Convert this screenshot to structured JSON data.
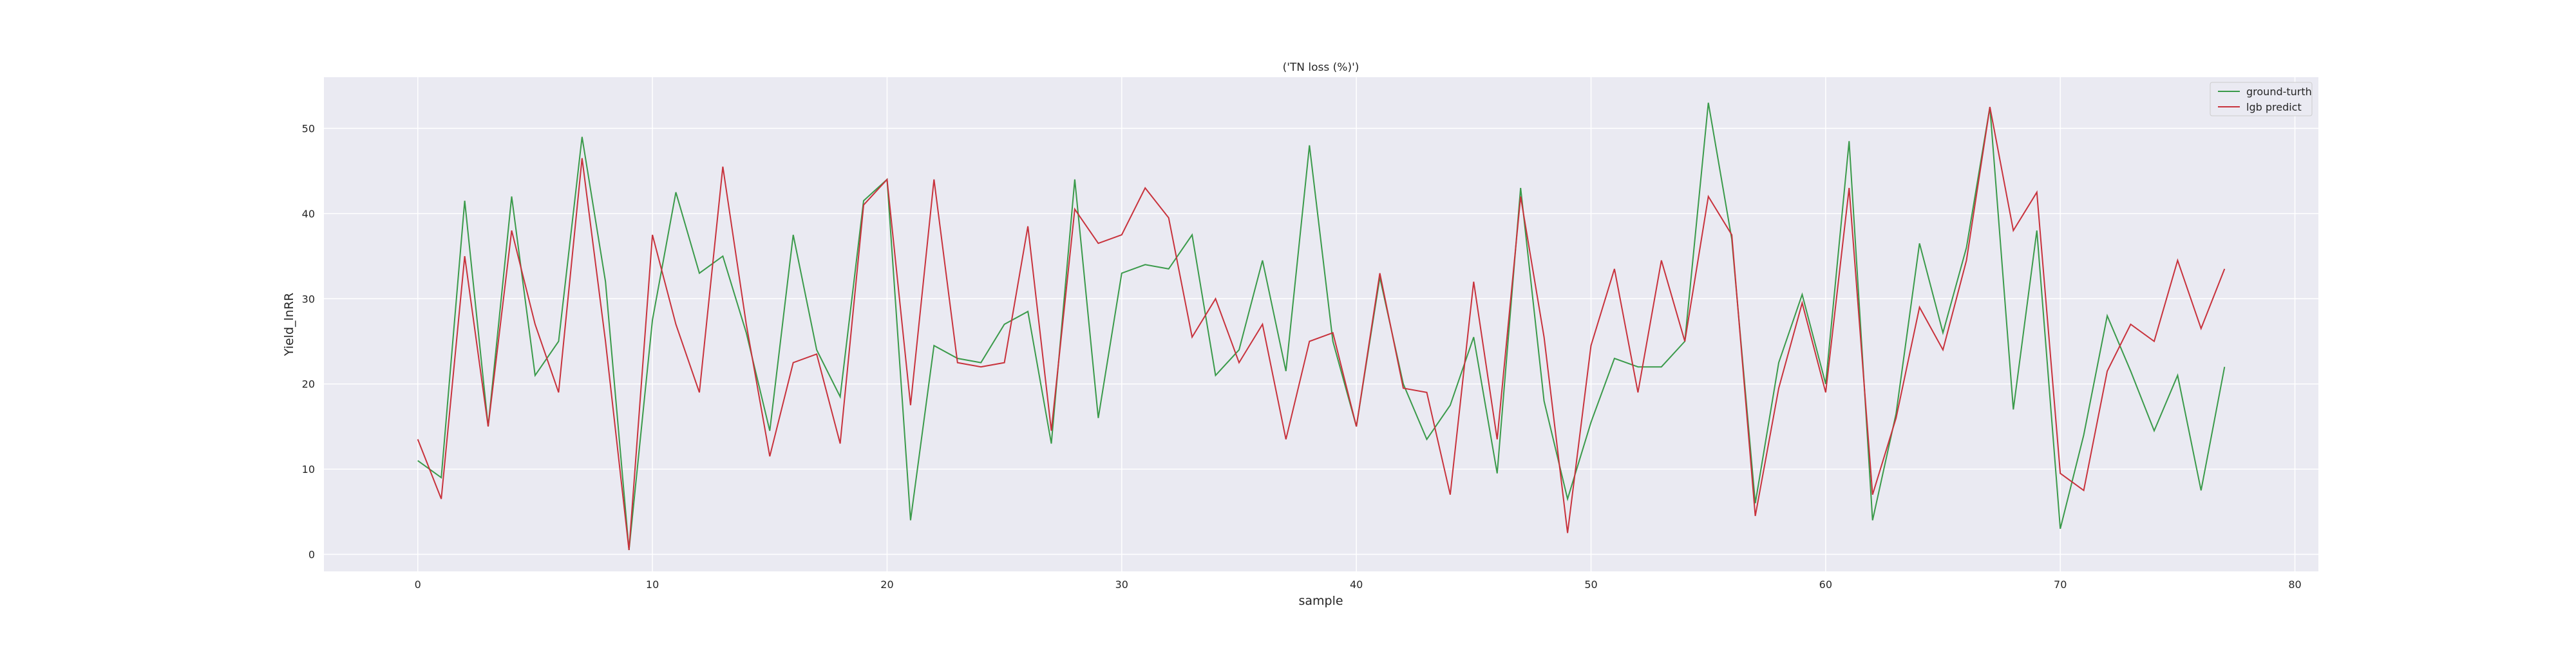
{
  "chart_data": {
    "type": "line",
    "title": "('TN loss (%)')",
    "xlabel": "sample",
    "ylabel": "Yield_lnRR",
    "xlim": [
      -4,
      81
    ],
    "ylim": [
      -2,
      56
    ],
    "xticks": [
      0,
      10,
      20,
      30,
      40,
      50,
      60,
      70,
      80
    ],
    "yticks": [
      0,
      10,
      20,
      30,
      40,
      50
    ],
    "grid": true,
    "legend_position": "top-right",
    "x": [
      0,
      1,
      2,
      3,
      4,
      5,
      6,
      7,
      8,
      9,
      10,
      11,
      12,
      13,
      14,
      15,
      16,
      17,
      18,
      19,
      20,
      21,
      22,
      23,
      24,
      25,
      26,
      27,
      28,
      29,
      30,
      31,
      32,
      33,
      34,
      35,
      36,
      37,
      38,
      39,
      40,
      41,
      42,
      43,
      44,
      45,
      46,
      47,
      48,
      49,
      50,
      51,
      52,
      53,
      54,
      55,
      56,
      57,
      58,
      59,
      60,
      61,
      62,
      63,
      64,
      65,
      66,
      67,
      68,
      69,
      70,
      71,
      72,
      73,
      74,
      75,
      76,
      77
    ],
    "series": [
      {
        "name": "ground-turth",
        "color": "#3a9a4a",
        "values": [
          11,
          9,
          41.5,
          15,
          42,
          21,
          25,
          49,
          32,
          0.5,
          27.5,
          42.5,
          33,
          35,
          26,
          14.5,
          37.5,
          24,
          18.5,
          41.5,
          44,
          4,
          24.5,
          23,
          22.5,
          27,
          28.5,
          13,
          44,
          16,
          33,
          34,
          33.5,
          37.5,
          21,
          24,
          34.5,
          21.5,
          48,
          25,
          15,
          32.5,
          20,
          13.5,
          17.5,
          25.5,
          9.5,
          43,
          18,
          6.5,
          15.5,
          23,
          22,
          22,
          25,
          53,
          37,
          6,
          22.5,
          30.5,
          20,
          48.5,
          4,
          16.5,
          36.5,
          26,
          36,
          52.5,
          17,
          38,
          3,
          14,
          28,
          21.5,
          14.5,
          21,
          7.5,
          22
        ]
      },
      {
        "name": "lgb predict",
        "color": "#c8323c",
        "values": [
          13.5,
          6.5,
          35,
          15,
          38,
          27,
          19,
          46.5,
          25,
          0.5,
          37.5,
          27,
          19,
          45.5,
          27,
          11.5,
          22.5,
          23.5,
          13,
          41,
          44,
          17.5,
          44,
          22.5,
          22,
          22.5,
          38.5,
          14.5,
          40.5,
          36.5,
          37.5,
          43,
          39.5,
          25.5,
          30,
          22.5,
          27,
          13.5,
          25,
          26,
          15,
          33,
          19.5,
          19,
          7,
          32,
          13.5,
          42,
          25.5,
          2.5,
          24.5,
          33.5,
          19,
          34.5,
          25,
          42,
          37.5,
          4.5,
          19.5,
          29.5,
          19,
          43,
          7,
          16,
          29,
          24,
          34.5,
          52.5,
          38,
          42.5,
          9.5,
          7.5,
          21.5,
          27,
          25,
          34.5,
          26.5,
          33.5
        ]
      }
    ]
  }
}
